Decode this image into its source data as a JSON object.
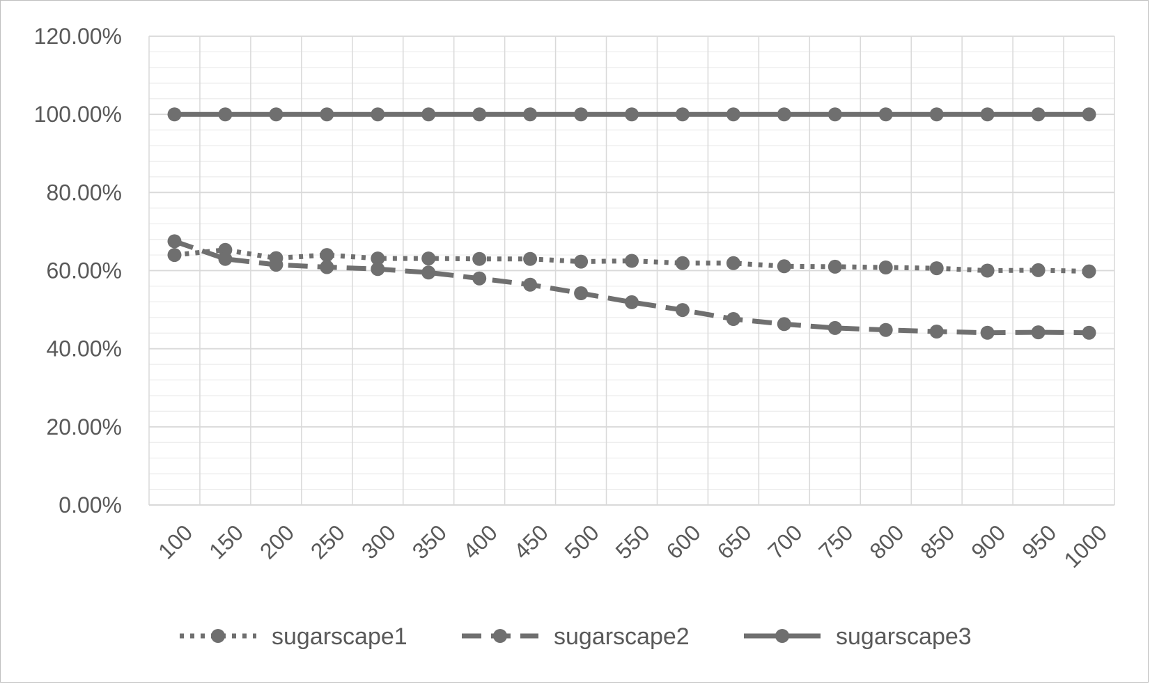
{
  "chart_data": {
    "type": "line",
    "title": "",
    "xlabel": "",
    "ylabel": "",
    "categories": [
      "100",
      "150",
      "200",
      "250",
      "300",
      "350",
      "400",
      "450",
      "500",
      "550",
      "600",
      "650",
      "700",
      "750",
      "800",
      "850",
      "900",
      "950",
      "1000"
    ],
    "ylim": [
      0,
      120
    ],
    "y_ticks": [
      {
        "value": 0,
        "label": "0.00%"
      },
      {
        "value": 20,
        "label": "20.00%"
      },
      {
        "value": 40,
        "label": "40.00%"
      },
      {
        "value": 60,
        "label": "60.00%"
      },
      {
        "value": 80,
        "label": "80.00%"
      },
      {
        "value": 100,
        "label": "100.00%"
      },
      {
        "value": 120,
        "label": "120.00%"
      }
    ],
    "grid": true,
    "legend_position": "bottom",
    "series": [
      {
        "name": "sugarscape1",
        "style": "dotted",
        "color": "#6f6f6f",
        "values": [
          64.0,
          65.3,
          63.2,
          64.0,
          63.1,
          63.1,
          63.0,
          63.0,
          62.3,
          62.5,
          61.9,
          61.9,
          61.1,
          61.0,
          60.8,
          60.6,
          60.0,
          60.1,
          59.8
        ]
      },
      {
        "name": "sugarscape2",
        "style": "dashed",
        "color": "#6f6f6f",
        "values": [
          67.5,
          63.0,
          61.5,
          60.9,
          60.4,
          59.5,
          58.0,
          56.4,
          54.2,
          51.9,
          49.9,
          47.6,
          46.3,
          45.3,
          44.8,
          44.4,
          44.1,
          44.2,
          44.1
        ]
      },
      {
        "name": "sugarscape3",
        "style": "solid",
        "color": "#6f6f6f",
        "values": [
          100,
          100,
          100,
          100,
          100,
          100,
          100,
          100,
          100,
          100,
          100,
          100,
          100,
          100,
          100,
          100,
          100,
          100,
          100
        ]
      }
    ]
  }
}
